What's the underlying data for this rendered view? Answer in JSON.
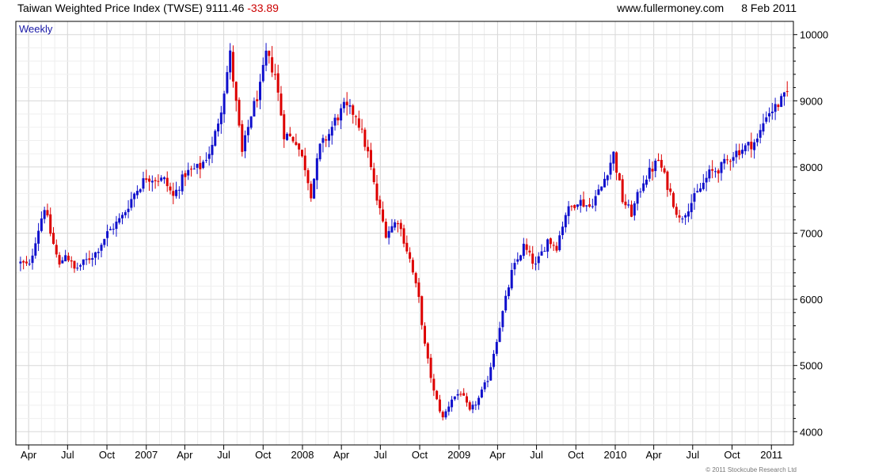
{
  "header": {
    "index_name": "Taiwan Weighted Price Index (TWSE)",
    "last": "9111.46",
    "change": "-33.89",
    "site": "www.fullermoney.com",
    "date": "8 Feb 2011"
  },
  "footer": {
    "credit": "© 2011 Stockcube Research Ltd"
  },
  "colors": {
    "up": "#1010cc",
    "down": "#dd0000",
    "grid": "#d8d8d8",
    "frame": "#000000",
    "period_label": "#1a1aa8"
  },
  "chart_data": {
    "type": "candlestick",
    "title": "Taiwan Weighted Price Index (TWSE)",
    "period_label": "Weekly",
    "y_axis_side": "right",
    "ylim": [
      3800,
      10200
    ],
    "yticks": [
      4000,
      5000,
      6000,
      7000,
      8000,
      9000,
      10000
    ],
    "x_start_week": "2006-03-13",
    "x_end_week": "2011-02-07",
    "x_ticks": [
      {
        "label": "Apr",
        "date": "2006-04-01"
      },
      {
        "label": "Jul",
        "date": "2006-07-01"
      },
      {
        "label": "Oct",
        "date": "2006-10-01"
      },
      {
        "label": "2007",
        "date": "2007-01-01"
      },
      {
        "label": "Apr",
        "date": "2007-04-01"
      },
      {
        "label": "Jul",
        "date": "2007-07-01"
      },
      {
        "label": "Oct",
        "date": "2007-10-01"
      },
      {
        "label": "2008",
        "date": "2008-01-01"
      },
      {
        "label": "Apr",
        "date": "2008-04-01"
      },
      {
        "label": "Jul",
        "date": "2008-07-01"
      },
      {
        "label": "Oct",
        "date": "2008-10-01"
      },
      {
        "label": "2009",
        "date": "2009-01-01"
      },
      {
        "label": "Apr",
        "date": "2009-04-01"
      },
      {
        "label": "Jul",
        "date": "2009-07-01"
      },
      {
        "label": "Oct",
        "date": "2009-10-01"
      },
      {
        "label": "2010",
        "date": "2010-01-01"
      },
      {
        "label": "Apr",
        "date": "2010-04-01"
      },
      {
        "label": "Jul",
        "date": "2010-07-01"
      },
      {
        "label": "Oct",
        "date": "2010-10-01"
      },
      {
        "label": "2011",
        "date": "2011-01-01"
      }
    ],
    "weekly_close_anchors": [
      [
        "2006-03-13",
        6550
      ],
      [
        "2006-04-03",
        6500
      ],
      [
        "2006-04-17",
        6900
      ],
      [
        "2006-05-08",
        7400
      ],
      [
        "2006-05-22",
        7000
      ],
      [
        "2006-06-12",
        6500
      ],
      [
        "2006-06-26",
        6700
      ],
      [
        "2006-07-17",
        6450
      ],
      [
        "2006-08-07",
        6550
      ],
      [
        "2006-09-04",
        6700
      ],
      [
        "2006-10-02",
        7000
      ],
      [
        "2006-11-06",
        7250
      ],
      [
        "2006-12-04",
        7600
      ],
      [
        "2007-01-01",
        7850
      ],
      [
        "2007-02-12",
        7800
      ],
      [
        "2007-03-05",
        7550
      ],
      [
        "2007-04-02",
        7900
      ],
      [
        "2007-05-07",
        8000
      ],
      [
        "2007-06-04",
        8300
      ],
      [
        "2007-06-25",
        8900
      ],
      [
        "2007-07-16",
        9700
      ],
      [
        "2007-08-13",
        8200
      ],
      [
        "2007-09-03",
        8800
      ],
      [
        "2007-09-24",
        9200
      ],
      [
        "2007-10-08",
        9700
      ],
      [
        "2007-10-29",
        9400
      ],
      [
        "2007-11-19",
        8500
      ],
      [
        "2007-12-17",
        8400
      ],
      [
        "2008-01-07",
        8000
      ],
      [
        "2008-01-21",
        7600
      ],
      [
        "2008-02-11",
        8300
      ],
      [
        "2008-03-03",
        8500
      ],
      [
        "2008-03-17",
        8700
      ],
      [
        "2008-04-07",
        8900
      ],
      [
        "2008-05-05",
        8800
      ],
      [
        "2008-06-02",
        8200
      ],
      [
        "2008-06-23",
        7500
      ],
      [
        "2008-07-14",
        7000
      ],
      [
        "2008-08-11",
        7200
      ],
      [
        "2008-09-08",
        6600
      ],
      [
        "2008-09-29",
        6000
      ],
      [
        "2008-10-13",
        5300
      ],
      [
        "2008-11-03",
        4600
      ],
      [
        "2008-11-24",
        4200
      ],
      [
        "2008-12-15",
        4500
      ],
      [
        "2009-01-05",
        4600
      ],
      [
        "2009-01-26",
        4300
      ],
      [
        "2009-02-16",
        4500
      ],
      [
        "2009-03-09",
        4800
      ],
      [
        "2009-04-06",
        5600
      ],
      [
        "2009-05-04",
        6400
      ],
      [
        "2009-06-01",
        6800
      ],
      [
        "2009-06-29",
        6500
      ],
      [
        "2009-07-27",
        6900
      ],
      [
        "2009-08-17",
        6800
      ],
      [
        "2009-09-07",
        7300
      ],
      [
        "2009-10-05",
        7500
      ],
      [
        "2009-11-02",
        7400
      ],
      [
        "2009-11-30",
        7700
      ],
      [
        "2009-12-28",
        8200
      ],
      [
        "2010-01-18",
        7500
      ],
      [
        "2010-02-08",
        7300
      ],
      [
        "2010-03-08",
        7800
      ],
      [
        "2010-04-12",
        8100
      ],
      [
        "2010-05-10",
        7600
      ],
      [
        "2010-05-31",
        7200
      ],
      [
        "2010-06-21",
        7400
      ],
      [
        "2010-07-12",
        7600
      ],
      [
        "2010-08-09",
        7900
      ],
      [
        "2010-09-06",
        8000
      ],
      [
        "2010-10-04",
        8200
      ],
      [
        "2010-11-01",
        8300
      ],
      [
        "2010-11-29",
        8400
      ],
      [
        "2010-12-20",
        8800
      ],
      [
        "2011-01-10",
        8900
      ],
      [
        "2011-01-31",
        9050
      ],
      [
        "2011-02-07",
        9111
      ]
    ]
  }
}
